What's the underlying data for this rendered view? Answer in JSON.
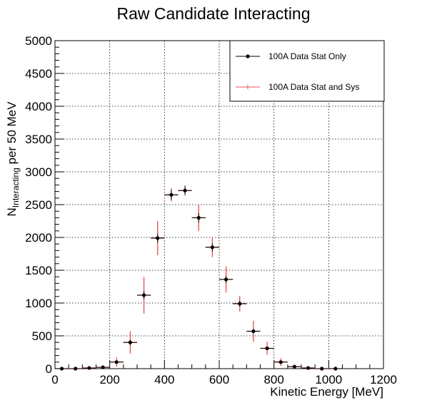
{
  "chart_data": {
    "type": "scatter",
    "title": "Raw Candidate Interacting",
    "xlabel": "Kinetic Energy [MeV]",
    "ylabel_main": "N",
    "ylabel_sub": "Interacting",
    "ylabel_rest": " per 50 MeV",
    "xlim": [
      0,
      1200
    ],
    "ylim": [
      0,
      5000
    ],
    "x_ticks": [
      0,
      200,
      400,
      600,
      800,
      1000,
      1200
    ],
    "y_ticks": [
      0,
      500,
      1000,
      1500,
      2000,
      2500,
      3000,
      3500,
      4000,
      4500,
      5000
    ],
    "grid": true,
    "bin_width": 50,
    "legend_position": "top-right",
    "series": [
      {
        "name": "100A Data Stat Only",
        "color": "#000000",
        "x": [
          25,
          75,
          125,
          175,
          225,
          275,
          325,
          375,
          425,
          475,
          525,
          575,
          625,
          675,
          725,
          775,
          825,
          875,
          925,
          975,
          1025
        ],
        "y": [
          0,
          0,
          10,
          20,
          100,
          400,
          1120,
          1990,
          2650,
          2715,
          2300,
          1850,
          1360,
          990,
          570,
          310,
          100,
          30,
          10,
          0,
          0
        ],
        "stat_err": [
          0,
          0,
          5,
          10,
          25,
          40,
          60,
          70,
          75,
          75,
          70,
          60,
          55,
          45,
          35,
          25,
          15,
          8,
          5,
          0,
          0
        ]
      },
      {
        "name": "100A Data Stat and Sys",
        "color": "#e84c4c",
        "x": [
          25,
          75,
          125,
          175,
          225,
          275,
          325,
          375,
          425,
          475,
          525,
          575,
          625,
          675,
          725,
          775,
          825,
          875,
          925,
          975,
          1025
        ],
        "y": [
          0,
          0,
          10,
          20,
          100,
          400,
          1120,
          1990,
          2650,
          2715,
          2300,
          1850,
          1360,
          990,
          570,
          310,
          100,
          30,
          10,
          0,
          0
        ],
        "total_err": [
          20,
          20,
          25,
          30,
          70,
          170,
          280,
          260,
          100,
          50,
          200,
          150,
          200,
          120,
          160,
          100,
          60,
          30,
          15,
          10,
          10
        ]
      }
    ]
  }
}
